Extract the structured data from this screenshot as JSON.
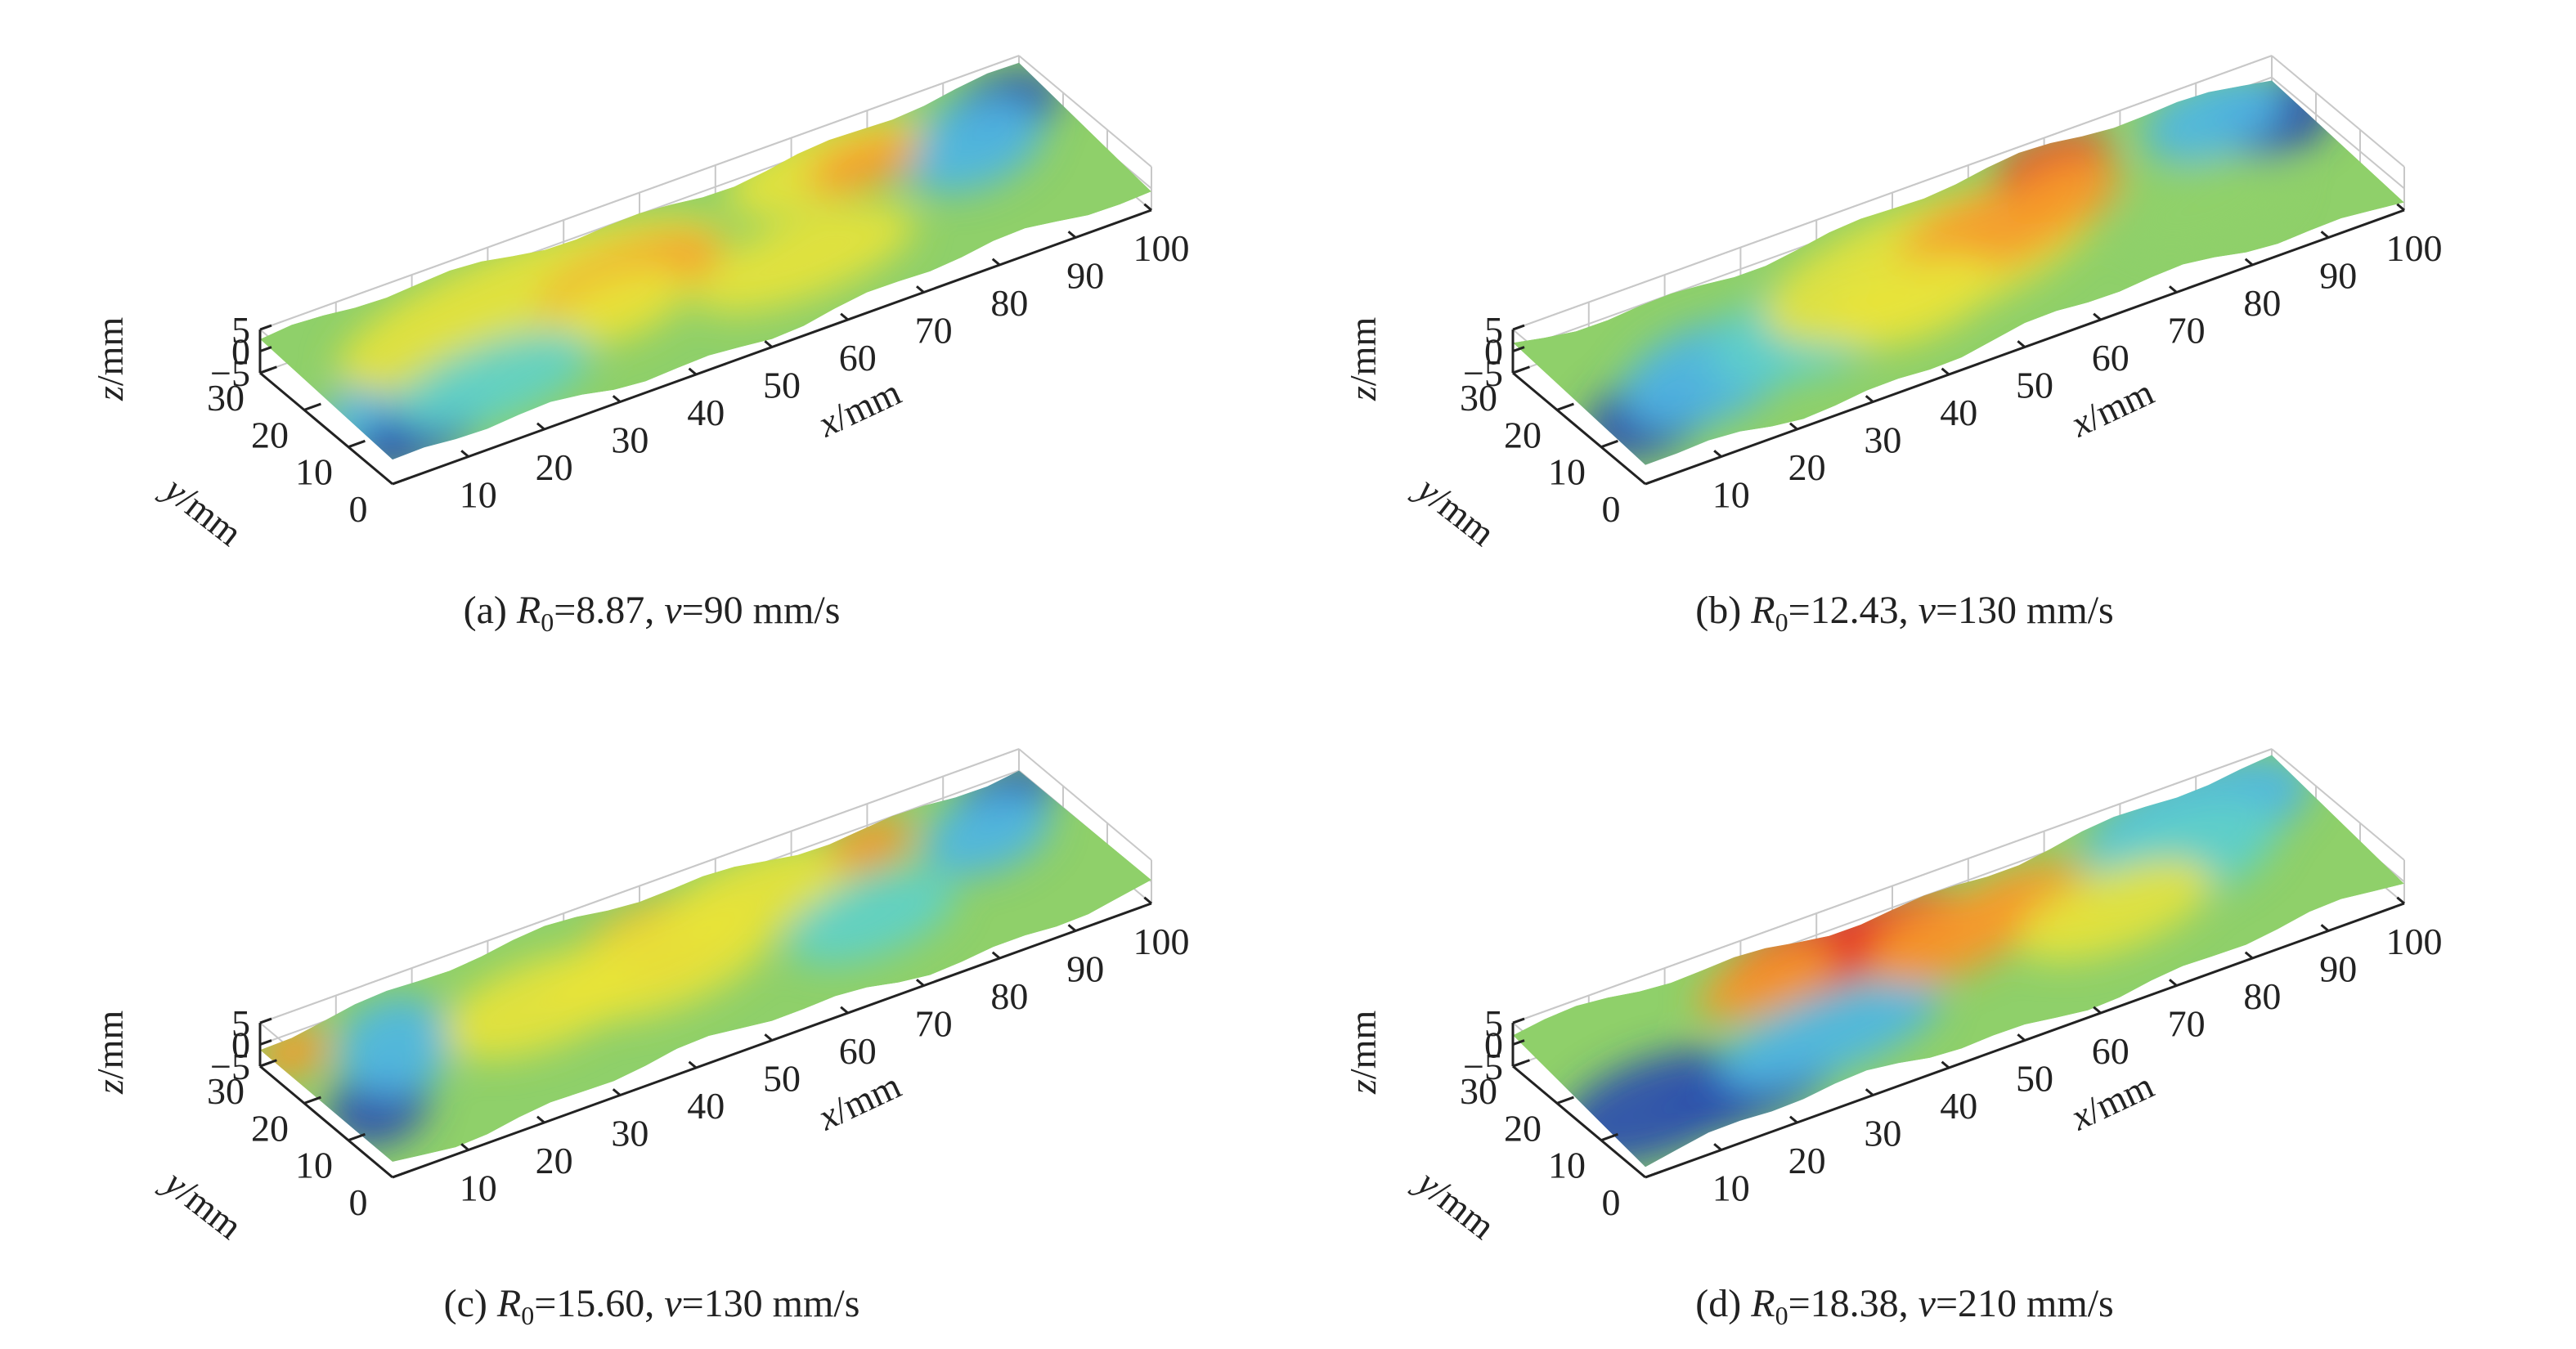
{
  "chart_data": [
    {
      "type": "surface3d",
      "caption": {
        "prefix": "(a) ",
        "r_sym": "R",
        "r_sub": "0",
        "r_val": "=8.87, ",
        "v_sym": "v",
        "v_val": "=90 mm/s"
      },
      "xlabel": {
        "var": "x",
        "unit": "/mm"
      },
      "ylabel": {
        "var": "y",
        "unit": "/mm"
      },
      "zlabel": {
        "var": "z",
        "unit": "/mm"
      },
      "x_ticks": [
        "10",
        "20",
        "30",
        "40",
        "50",
        "60",
        "70",
        "80",
        "90",
        "100"
      ],
      "y_ticks": [
        "0",
        "10",
        "20",
        "30"
      ],
      "z_ticks": [
        "5",
        "0",
        "−5"
      ],
      "xlim": [
        0,
        100
      ],
      "ylim": [
        0,
        30
      ],
      "zlim": [
        -5,
        5
      ],
      "colormap": "jet",
      "peak_x": [
        35,
        75
      ],
      "description_of_pattern": "mostly green/yellow surface with orange peak near x≈35–45 and x≈75, blue low regions at both ends"
    },
    {
      "type": "surface3d",
      "caption": {
        "prefix": "(b) ",
        "r_sym": "R",
        "r_sub": "0",
        "r_val": "=12.43, ",
        "v_sym": "v",
        "v_val": "=130 mm/s"
      },
      "xlabel": {
        "var": "x",
        "unit": "/mm"
      },
      "ylabel": {
        "var": "y",
        "unit": "/mm"
      },
      "zlabel": {
        "var": "z",
        "unit": "/mm"
      },
      "x_ticks": [
        "10",
        "20",
        "30",
        "40",
        "50",
        "60",
        "70",
        "80",
        "90",
        "100"
      ],
      "y_ticks": [
        "0",
        "10",
        "20",
        "30"
      ],
      "z_ticks": [
        "5",
        "0",
        "−5"
      ],
      "xlim": [
        0,
        100
      ],
      "ylim": [
        0,
        30
      ],
      "zlim": [
        -5,
        5
      ],
      "colormap": "jet",
      "peak_x": [
        55,
        75
      ]
    },
    {
      "type": "surface3d",
      "caption": {
        "prefix": "(c) ",
        "r_sym": "R",
        "r_sub": "0",
        "r_val": "=15.60, ",
        "v_sym": "v",
        "v_val": "=130 mm/s"
      },
      "xlabel": {
        "var": "x",
        "unit": "/mm"
      },
      "ylabel": {
        "var": "y",
        "unit": "/mm"
      },
      "zlabel": {
        "var": "z",
        "unit": "/mm"
      },
      "x_ticks": [
        "10",
        "20",
        "30",
        "40",
        "50",
        "60",
        "70",
        "80",
        "90",
        "100"
      ],
      "y_ticks": [
        "0",
        "10",
        "20",
        "30"
      ],
      "z_ticks": [
        "5",
        "0",
        "−5"
      ],
      "xlim": [
        0,
        100
      ],
      "ylim": [
        0,
        30
      ],
      "zlim": [
        -5,
        5
      ],
      "colormap": "jet",
      "peak_x": [
        45,
        80
      ]
    },
    {
      "type": "surface3d",
      "caption": {
        "prefix": "(d) ",
        "r_sym": "R",
        "r_sub": "0",
        "r_val": "=18.38, ",
        "v_sym": "v",
        "v_val": "=210 mm/s"
      },
      "xlabel": {
        "var": "x",
        "unit": "/mm"
      },
      "ylabel": {
        "var": "y",
        "unit": "/mm"
      },
      "zlabel": {
        "var": "z",
        "unit": "/mm"
      },
      "x_ticks": [
        "10",
        "20",
        "30",
        "40",
        "50",
        "60",
        "70",
        "80",
        "90",
        "100"
      ],
      "y_ticks": [
        "0",
        "10",
        "20",
        "30"
      ],
      "z_ticks": [
        "5",
        "0",
        "−5"
      ],
      "xlim": [
        0,
        100
      ],
      "ylim": [
        0,
        30
      ],
      "zlim": [
        -5,
        5
      ],
      "colormap": "jet",
      "peak_x": [
        40,
        55
      ]
    }
  ],
  "colors": {
    "deep_blue": "#2b4fae",
    "light_blue": "#4fb6e3",
    "cyan": "#5fd0c8",
    "green": "#8fd06a",
    "yellow": "#e7e33a",
    "orange": "#f59a2c",
    "red": "#e5322a",
    "axis": "#222222",
    "grid": "#c8c8c8"
  }
}
